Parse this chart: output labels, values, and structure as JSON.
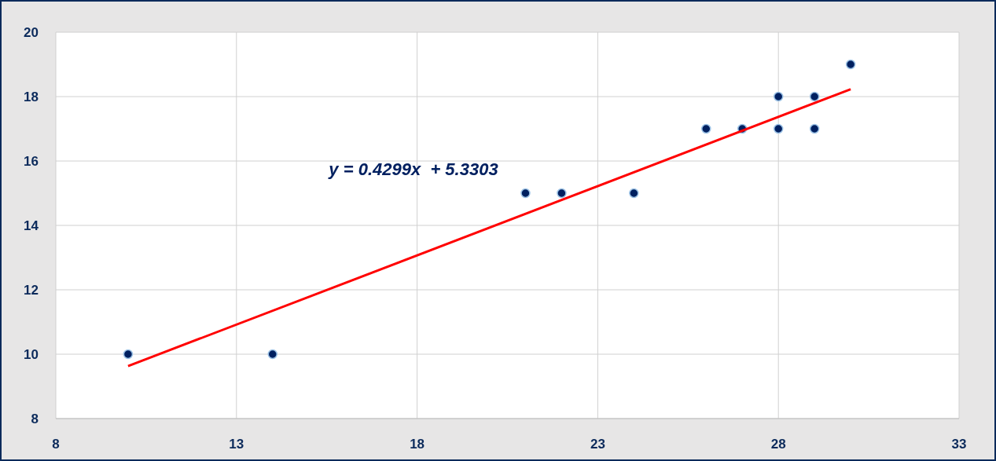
{
  "chart_data": {
    "type": "scatter",
    "xlim": [
      8,
      33
    ],
    "xticks": [
      8,
      13,
      18,
      23,
      28,
      33
    ],
    "ylim": [
      8,
      20
    ],
    "yticks": [
      8,
      10,
      12,
      14,
      16,
      18,
      20
    ],
    "grid": true,
    "marker": "circle",
    "series": [
      {
        "color": "#002060",
        "x": [
          10,
          14,
          21,
          22,
          24,
          26,
          27,
          28,
          28,
          29,
          29,
          30
        ],
        "values": [
          10,
          10,
          15,
          15,
          15,
          17,
          17,
          18,
          17,
          18,
          17,
          19
        ]
      },
      {
        "type": "line",
        "color": "#ff0000",
        "line_style": "solid",
        "marker": "none",
        "x": [
          10,
          30
        ],
        "values": [
          9.63,
          18.23
        ]
      }
    ],
    "annotations": [
      "y = 0.4299x  + 5.3303"
    ]
  }
}
